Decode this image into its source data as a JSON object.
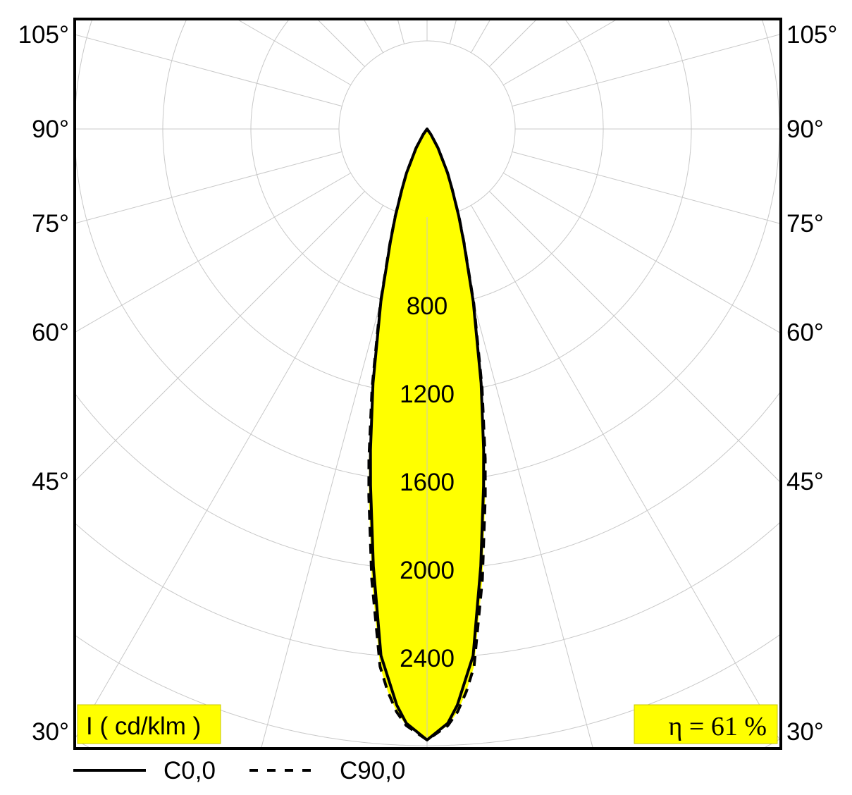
{
  "chart_data": {
    "type": "polar",
    "unit_label": "I ( cd/klm )",
    "efficiency_label": "η = 61 %",
    "radial_ticks": [
      800,
      1200,
      1600,
      2000,
      2400
    ],
    "radial_grid_step": 400,
    "angle_grid_step": 15,
    "angle_labels": [
      "105°",
      "90°",
      "75°",
      "60°",
      "45°",
      "30°"
    ],
    "angle_label_values": [
      105,
      90,
      75,
      60,
      45,
      30
    ],
    "grid": true,
    "fill_color": "#ffff00",
    "grid_color": "#c8c8c8",
    "legend_placement": "bottom",
    "series": [
      {
        "name": "C0,0",
        "style": "solid",
        "angles": [
          0,
          2,
          3,
          5,
          7,
          9,
          10,
          12,
          15,
          18,
          20,
          22.5,
          25,
          30,
          35,
          40
        ],
        "values": [
          2774,
          2700,
          2620,
          2400,
          2000,
          1640,
          1480,
          1180,
          810,
          540,
          420,
          300,
          220,
          100,
          30,
          0
        ]
      },
      {
        "name": "C90,0",
        "style": "dashed",
        "angles": [
          0,
          2,
          3,
          4,
          5,
          7,
          9,
          10,
          12,
          15,
          18,
          20,
          22.5,
          25,
          30,
          35,
          40
        ],
        "values": [
          2774,
          2710,
          2650,
          2560,
          2450,
          2060,
          1690,
          1520,
          1200,
          820,
          545,
          425,
          300,
          220,
          100,
          30,
          0
        ]
      }
    ]
  }
}
